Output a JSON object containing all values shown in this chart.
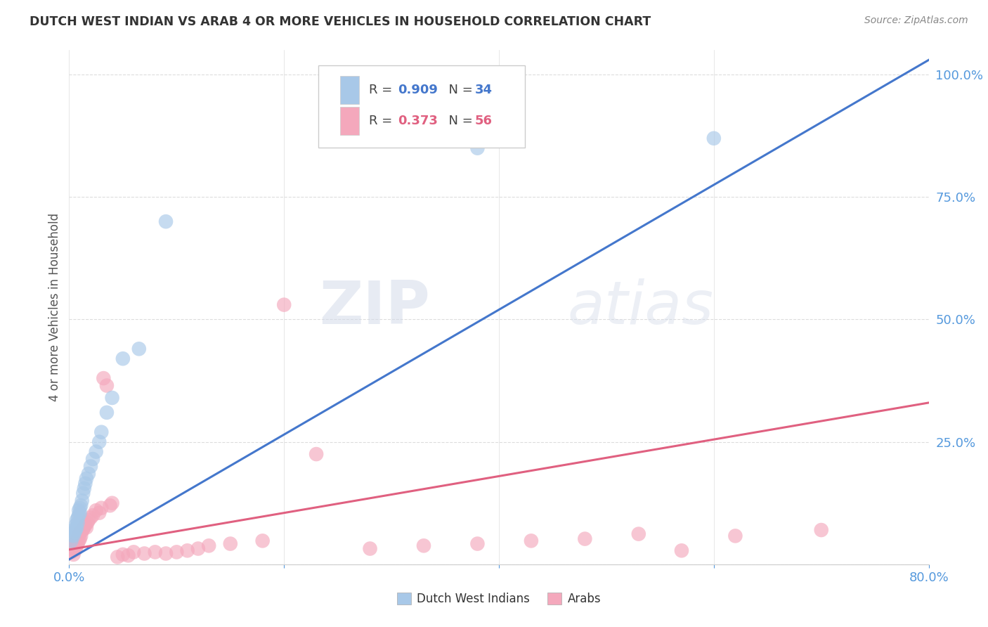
{
  "title": "DUTCH WEST INDIAN VS ARAB 4 OR MORE VEHICLES IN HOUSEHOLD CORRELATION CHART",
  "source": "Source: ZipAtlas.com",
  "ylabel": "4 or more Vehicles in Household",
  "watermark": "ZIPatlas",
  "xlim": [
    0.0,
    0.8
  ],
  "ylim": [
    0.0,
    1.05
  ],
  "yticks": [
    0.0,
    0.25,
    0.5,
    0.75,
    1.0
  ],
  "ytick_labels": [
    "",
    "25.0%",
    "50.0%",
    "75.0%",
    "100.0%"
  ],
  "xtick_vals": [
    0.0,
    0.2,
    0.4,
    0.6,
    0.8
  ],
  "xtick_labels": [
    "0.0%",
    "",
    "",
    "",
    "80.0%"
  ],
  "background_color": "#ffffff",
  "grid_color": "#dddddd",
  "dutch_color": "#a8c8e8",
  "arab_color": "#f4a8bc",
  "dutch_line_color": "#4477cc",
  "arab_line_color": "#e06080",
  "legend_R1": "0.909",
  "legend_N1": "34",
  "legend_R2": "0.373",
  "legend_N2": "56",
  "dutch_points_x": [
    0.002,
    0.003,
    0.004,
    0.005,
    0.005,
    0.006,
    0.006,
    0.007,
    0.007,
    0.008,
    0.008,
    0.009,
    0.009,
    0.01,
    0.01,
    0.011,
    0.012,
    0.013,
    0.014,
    0.015,
    0.016,
    0.018,
    0.02,
    0.022,
    0.025,
    0.028,
    0.03,
    0.035,
    0.04,
    0.05,
    0.065,
    0.09,
    0.38,
    0.6
  ],
  "dutch_points_y": [
    0.048,
    0.06,
    0.058,
    0.065,
    0.072,
    0.07,
    0.08,
    0.075,
    0.09,
    0.085,
    0.095,
    0.1,
    0.11,
    0.105,
    0.115,
    0.12,
    0.13,
    0.145,
    0.155,
    0.165,
    0.175,
    0.185,
    0.2,
    0.215,
    0.23,
    0.25,
    0.27,
    0.31,
    0.34,
    0.42,
    0.44,
    0.7,
    0.85,
    0.87
  ],
  "arab_points_x": [
    0.002,
    0.003,
    0.004,
    0.005,
    0.005,
    0.006,
    0.006,
    0.007,
    0.007,
    0.008,
    0.008,
    0.009,
    0.009,
    0.01,
    0.01,
    0.011,
    0.012,
    0.013,
    0.014,
    0.015,
    0.016,
    0.017,
    0.018,
    0.02,
    0.022,
    0.025,
    0.028,
    0.03,
    0.032,
    0.035,
    0.038,
    0.04,
    0.045,
    0.05,
    0.055,
    0.06,
    0.07,
    0.08,
    0.09,
    0.1,
    0.11,
    0.12,
    0.13,
    0.15,
    0.18,
    0.2,
    0.23,
    0.28,
    0.33,
    0.38,
    0.43,
    0.48,
    0.53,
    0.57,
    0.62,
    0.7
  ],
  "arab_points_y": [
    0.025,
    0.03,
    0.02,
    0.035,
    0.04,
    0.03,
    0.045,
    0.038,
    0.05,
    0.042,
    0.055,
    0.048,
    0.06,
    0.052,
    0.065,
    0.058,
    0.068,
    0.072,
    0.076,
    0.08,
    0.075,
    0.085,
    0.09,
    0.095,
    0.1,
    0.11,
    0.105,
    0.115,
    0.38,
    0.365,
    0.12,
    0.125,
    0.015,
    0.02,
    0.018,
    0.025,
    0.022,
    0.025,
    0.022,
    0.025,
    0.028,
    0.032,
    0.038,
    0.042,
    0.048,
    0.53,
    0.225,
    0.032,
    0.038,
    0.042,
    0.048,
    0.052,
    0.062,
    0.028,
    0.058,
    0.07
  ],
  "dutch_line_x0": 0.0,
  "dutch_line_y0": 0.01,
  "dutch_line_x1": 0.8,
  "dutch_line_y1": 1.03,
  "arab_line_x0": 0.0,
  "arab_line_y0": 0.03,
  "arab_line_x1": 0.8,
  "arab_line_y1": 0.33
}
